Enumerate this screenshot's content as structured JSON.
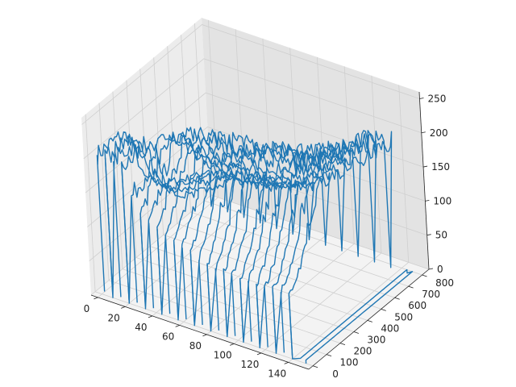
{
  "chart_data": {
    "type": "line3d",
    "title": "",
    "xlabel": "",
    "ylabel": "",
    "zlabel": "",
    "xlim": [
      -5,
      155
    ],
    "ylim": [
      -30,
      850
    ],
    "zlim": [
      0,
      260
    ],
    "x_ticks": [
      0,
      20,
      40,
      60,
      80,
      100,
      120,
      140
    ],
    "y_ticks": [
      0,
      100,
      200,
      300,
      400,
      500,
      600,
      700,
      800
    ],
    "z_ticks": [
      0,
      50,
      100,
      150,
      200,
      250
    ],
    "x_tick_labels": [
      "0",
      "20",
      "40",
      "60",
      "80",
      "100",
      "120",
      "140"
    ],
    "y_tick_labels": [
      "0",
      "100",
      "200",
      "300",
      "400",
      "500",
      "600",
      "700",
      "800"
    ],
    "z_tick_labels": [
      "0",
      "50",
      "100",
      "150",
      "200",
      "250"
    ],
    "series": [
      {
        "color": "#1f77b4",
        "description_of_shape": "single continuous line tracing image rows; each row runs along y from 0 to about 780 at fixed x, values mostly 100-230",
        "profile_y": [
          0,
          40,
          80,
          120,
          160,
          200,
          240,
          280,
          320,
          360,
          400,
          440,
          480,
          520,
          560,
          600,
          640,
          680,
          720,
          760,
          780
        ],
        "row_x": [
          2,
          8,
          14,
          20,
          26,
          32,
          38,
          44,
          50,
          56,
          62,
          68,
          74,
          80,
          86,
          92,
          98,
          104,
          110,
          116,
          122,
          128,
          134,
          140,
          146,
          150
        ],
        "row_profiles_z": [
          [
            205,
            206,
            206,
            205,
            204,
            200,
            190,
            150,
            120,
            110,
            100,
            90,
            85,
            80,
            75,
            70,
            65,
            60,
            58,
            55,
            55
          ],
          [
            205,
            206,
            205,
            204,
            203,
            199,
            188,
            148,
            118,
            108,
            98,
            88,
            84,
            80,
            75,
            70,
            66,
            62,
            58,
            56,
            55
          ],
          [
            204,
            205,
            205,
            204,
            202,
            198,
            186,
            145,
            115,
            106,
            96,
            87,
            82,
            78,
            74,
            70,
            66,
            62,
            58,
            56,
            55
          ],
          [
            203,
            204,
            204,
            203,
            201,
            197,
            185,
            142,
            112,
            104,
            94,
            86,
            80,
            76,
            72,
            68,
            64,
            60,
            58,
            55,
            55
          ],
          [
            160,
            165,
            170,
            175,
            180,
            195,
            210,
            200,
            185,
            170,
            160,
            150,
            140,
            130,
            120,
            110,
            100,
            92,
            85,
            80,
            78
          ],
          [
            140,
            150,
            165,
            180,
            195,
            205,
            215,
            210,
            195,
            180,
            165,
            150,
            135,
            120,
            108,
            98,
            90,
            84,
            80,
            78,
            76
          ],
          [
            130,
            145,
            160,
            178,
            195,
            210,
            220,
            215,
            200,
            185,
            168,
            150,
            132,
            118,
            105,
            96,
            88,
            82,
            78,
            76,
            75
          ],
          [
            125,
            140,
            158,
            176,
            196,
            212,
            224,
            218,
            205,
            188,
            170,
            152,
            134,
            118,
            105,
            95,
            88,
            82,
            78,
            76,
            75
          ],
          [
            120,
            135,
            155,
            175,
            195,
            214,
            226,
            222,
            208,
            190,
            172,
            154,
            136,
            120,
            106,
            96,
            88,
            82,
            78,
            76,
            75
          ],
          [
            115,
            130,
            150,
            172,
            194,
            214,
            228,
            225,
            212,
            195,
            176,
            158,
            140,
            122,
            108,
            98,
            90,
            84,
            80,
            78,
            76
          ],
          [
            110,
            125,
            145,
            168,
            192,
            213,
            228,
            226,
            214,
            198,
            180,
            162,
            144,
            126,
            112,
            102,
            94,
            88,
            84,
            80,
            78
          ],
          [
            105,
            120,
            140,
            165,
            190,
            212,
            228,
            228,
            218,
            202,
            185,
            166,
            148,
            130,
            116,
            106,
            98,
            92,
            86,
            82,
            80
          ],
          [
            100,
            115,
            135,
            160,
            188,
            210,
            228,
            228,
            220,
            206,
            190,
            172,
            154,
            136,
            122,
            112,
            104,
            96,
            90,
            86,
            84
          ],
          [
            98,
            112,
            132,
            158,
            186,
            208,
            226,
            228,
            222,
            210,
            196,
            180,
            162,
            146,
            132,
            120,
            110,
            102,
            96,
            92,
            90
          ],
          [
            96,
            110,
            130,
            156,
            184,
            206,
            224,
            228,
            224,
            214,
            200,
            186,
            170,
            156,
            142,
            130,
            120,
            112,
            106,
            100,
            98
          ],
          [
            95,
            108,
            128,
            154,
            182,
            204,
            222,
            228,
            226,
            218,
            206,
            194,
            180,
            166,
            154,
            142,
            132,
            124,
            116,
            110,
            106
          ],
          [
            94,
            106,
            126,
            152,
            180,
            202,
            220,
            226,
            226,
            220,
            210,
            200,
            190,
            178,
            166,
            156,
            146,
            138,
            130,
            124,
            120
          ],
          [
            94,
            104,
            124,
            150,
            178,
            200,
            218,
            224,
            226,
            222,
            214,
            206,
            198,
            188,
            178,
            168,
            160,
            152,
            146,
            140,
            136
          ],
          [
            94,
            104,
            122,
            148,
            176,
            198,
            216,
            222,
            224,
            222,
            216,
            210,
            204,
            196,
            188,
            180,
            174,
            168,
            162,
            158,
            154
          ],
          [
            94,
            104,
            120,
            146,
            174,
            196,
            214,
            220,
            222,
            220,
            216,
            212,
            208,
            202,
            196,
            190,
            184,
            180,
            176,
            172,
            170
          ],
          [
            94,
            104,
            118,
            144,
            172,
            194,
            212,
            218,
            220,
            218,
            216,
            212,
            210,
            206,
            202,
            198,
            194,
            190,
            186,
            184,
            182
          ],
          [
            94,
            104,
            118,
            142,
            170,
            192,
            210,
            216,
            218,
            216,
            214,
            212,
            210,
            208,
            205,
            202,
            199,
            196,
            194,
            192,
            190
          ],
          [
            94,
            104,
            118,
            140,
            168,
            190,
            208,
            214,
            216,
            214,
            212,
            210,
            208,
            206,
            204,
            202,
            200,
            198,
            196,
            194,
            192
          ],
          [
            94,
            104,
            116,
            138,
            166,
            188,
            206,
            212,
            214,
            212,
            210,
            208,
            206,
            204,
            202,
            200,
            198,
            196,
            194,
            192,
            190
          ],
          [
            5,
            5,
            5,
            5,
            5,
            5,
            5,
            5,
            5,
            5,
            5,
            5,
            5,
            5,
            5,
            5,
            5,
            5,
            5,
            5,
            5
          ],
          [
            5,
            5,
            5,
            5,
            5,
            5,
            5,
            5,
            5,
            5,
            5,
            5,
            5,
            5,
            5,
            5,
            5,
            5,
            5,
            5,
            5
          ]
        ]
      }
    ],
    "grid": true
  }
}
